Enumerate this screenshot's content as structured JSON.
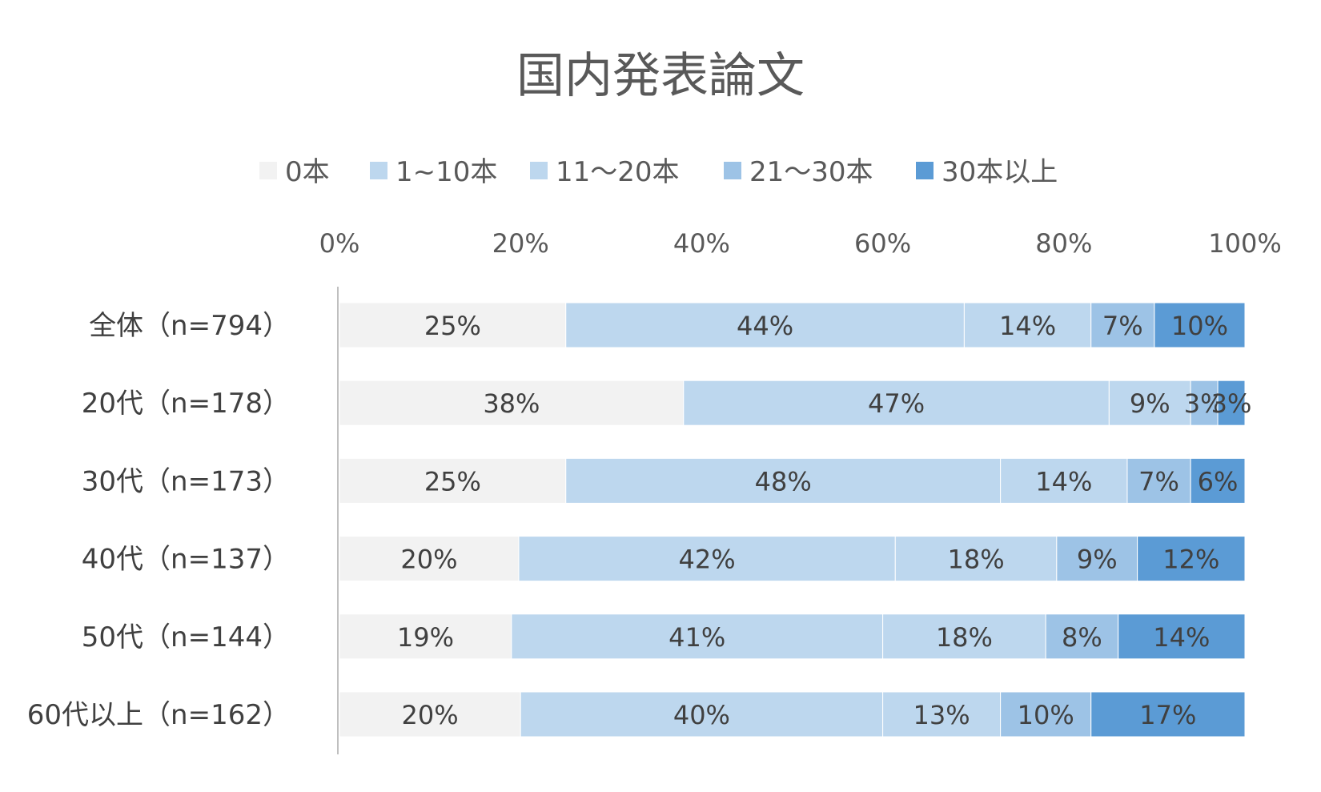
{
  "chart_data": {
    "type": "bar",
    "orientation": "horizontal",
    "stacked": "percent",
    "title": "国内発表論文",
    "legend_position": "top",
    "xlim": [
      0,
      100
    ],
    "x_ticks": [
      "0%",
      "20%",
      "40%",
      "60%",
      "80%",
      "100%"
    ],
    "x_axis_position": "top",
    "categories": [
      "全体（n=794）",
      "20代（n=178）",
      "30代（n=173）",
      "40代（n=137）",
      "50代（n=144）",
      "60代以上（n=162）"
    ],
    "series": [
      {
        "name": "0本",
        "color": "#f2f2f2",
        "values": [
          25,
          38,
          25,
          20,
          19,
          20
        ]
      },
      {
        "name": "1~10本",
        "color": "#bdd7ee",
        "values": [
          44,
          47,
          48,
          42,
          41,
          40
        ]
      },
      {
        "name": "11～20本",
        "color": "#bdd7ee",
        "values": [
          14,
          9,
          14,
          18,
          18,
          13
        ]
      },
      {
        "name": "21～30本",
        "color": "#9dc3e6",
        "values": [
          7,
          3,
          7,
          9,
          8,
          10
        ]
      },
      {
        "name": "30本以上",
        "color": "#5b9bd5",
        "values": [
          10,
          3,
          6,
          12,
          14,
          17
        ]
      }
    ],
    "grid": false
  }
}
